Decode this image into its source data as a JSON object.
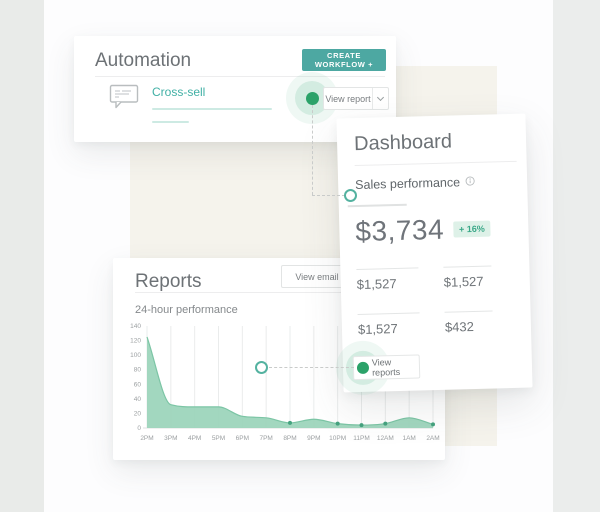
{
  "colors": {
    "teal_button": "#4da8a2",
    "accent_link": "#41b0a5",
    "green_dot": "#2ba269",
    "badge_bg": "#def1e8",
    "badge_text": "#3aa888",
    "area_fill": "#9ad4ba",
    "area_line": "#7cc5a5",
    "panel_beige": "#f5f3ec",
    "side_band_gray": "#e9ebe9"
  },
  "automation_card": {
    "title": "Automation",
    "create_workflow_button": "CREATE WORKFLOW +",
    "workflow": {
      "name": "Cross-sell",
      "view_report_button": "View report"
    }
  },
  "dashboard_card": {
    "title": "Dashboard",
    "section_title": "Sales performance",
    "total_value": "$3,734",
    "change_badge": "+ 16%",
    "stats": [
      [
        "$1,527",
        "$1,527"
      ],
      [
        "$1,527",
        "$432"
      ]
    ],
    "view_reports_button": "View reports"
  },
  "reports_card": {
    "title": "Reports",
    "view_email_button": "View email",
    "chart_title": "24-hour performance"
  },
  "chart_data": {
    "type": "area",
    "title": "24-hour performance",
    "categories": [
      "2PM",
      "3PM",
      "4PM",
      "5PM",
      "6PM",
      "7PM",
      "8PM",
      "9PM",
      "10PM",
      "11PM",
      "12AM",
      "1AM",
      "2AM"
    ],
    "values": [
      125,
      32,
      29,
      29,
      16,
      14,
      7,
      12,
      6,
      4,
      6,
      14,
      5
    ],
    "xlabel": "",
    "ylabel": "",
    "ylim": [
      0,
      140
    ],
    "yticks": [
      0,
      20,
      40,
      60,
      80,
      100,
      120,
      140
    ],
    "grid": "vertical",
    "legend": "none",
    "marker_indices": [
      6,
      8,
      9,
      10,
      12
    ],
    "area_color": "#9ad4ba",
    "line_color": "#7cc5a5"
  }
}
